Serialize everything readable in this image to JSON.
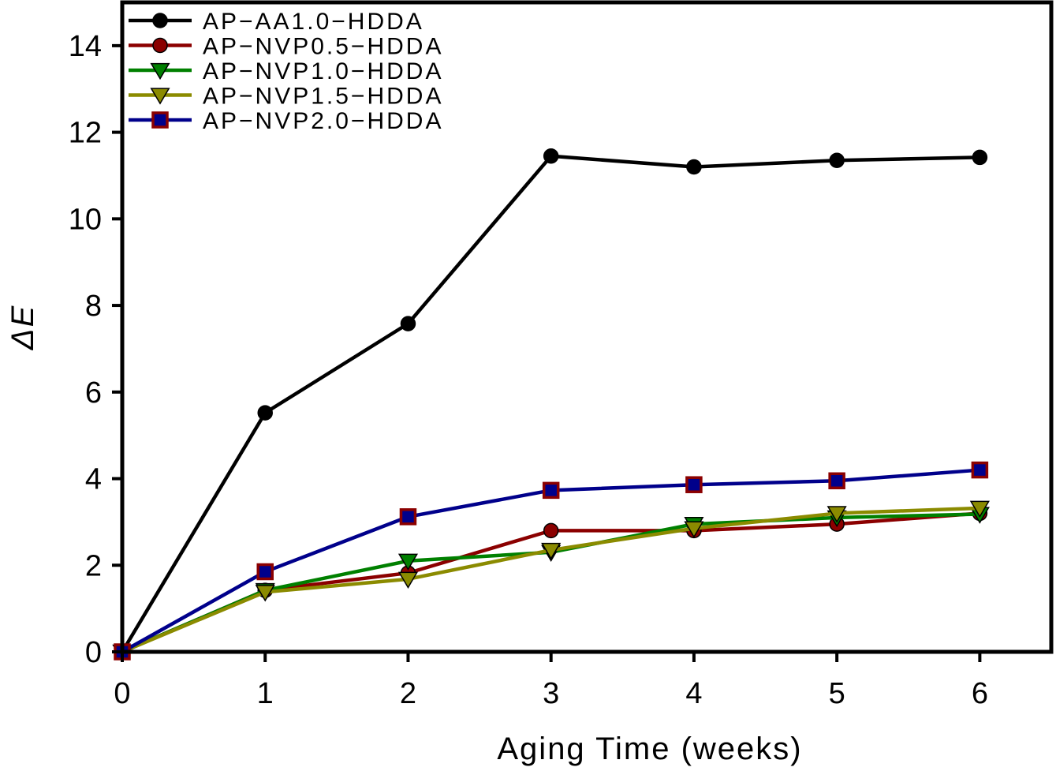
{
  "chart_data": {
    "type": "line",
    "title": "",
    "xlabel": "Aging Time (weeks)",
    "ylabel": "ΔE",
    "xlim": [
      0,
      6.5
    ],
    "ylim": [
      0,
      15
    ],
    "x": [
      0,
      1,
      2,
      3,
      4,
      5,
      6
    ],
    "x_ticks": [
      0,
      1,
      2,
      3,
      4,
      5,
      6
    ],
    "y_ticks": [
      0,
      2,
      4,
      6,
      8,
      10,
      12,
      14
    ],
    "grid": false,
    "legend_position": "top-left",
    "series": [
      {
        "name": "AP−AA1.0−HDDA",
        "marker": "circle",
        "color": "#000000",
        "marker_fill": "#000000",
        "values": [
          0,
          5.52,
          7.58,
          11.45,
          11.2,
          11.35,
          11.42
        ]
      },
      {
        "name": "AP−NVP0.5−HDDA",
        "marker": "circle",
        "color": "#8b0000",
        "marker_fill": "#8b0000",
        "values": [
          0,
          1.42,
          1.82,
          2.8,
          2.8,
          2.95,
          3.2
        ]
      },
      {
        "name": "AP−NVP1.0−HDDA",
        "marker": "triangle-down",
        "color": "#008000",
        "marker_fill": "#008000",
        "values": [
          0,
          1.42,
          2.1,
          2.3,
          2.95,
          3.1,
          3.18
        ]
      },
      {
        "name": "AP−NVP1.5−HDDA",
        "marker": "triangle-down",
        "color": "#8b8b00",
        "marker_fill": "#8b8b00",
        "values": [
          0,
          1.38,
          1.68,
          2.35,
          2.85,
          3.2,
          3.32
        ]
      },
      {
        "name": "AP−NVP2.0−HDDA",
        "marker": "square",
        "color": "#00008b",
        "marker_fill": "#00008b",
        "marker_edge": "#8b0000",
        "values": [
          0,
          1.85,
          3.12,
          3.73,
          3.86,
          3.95,
          4.2
        ]
      }
    ]
  }
}
